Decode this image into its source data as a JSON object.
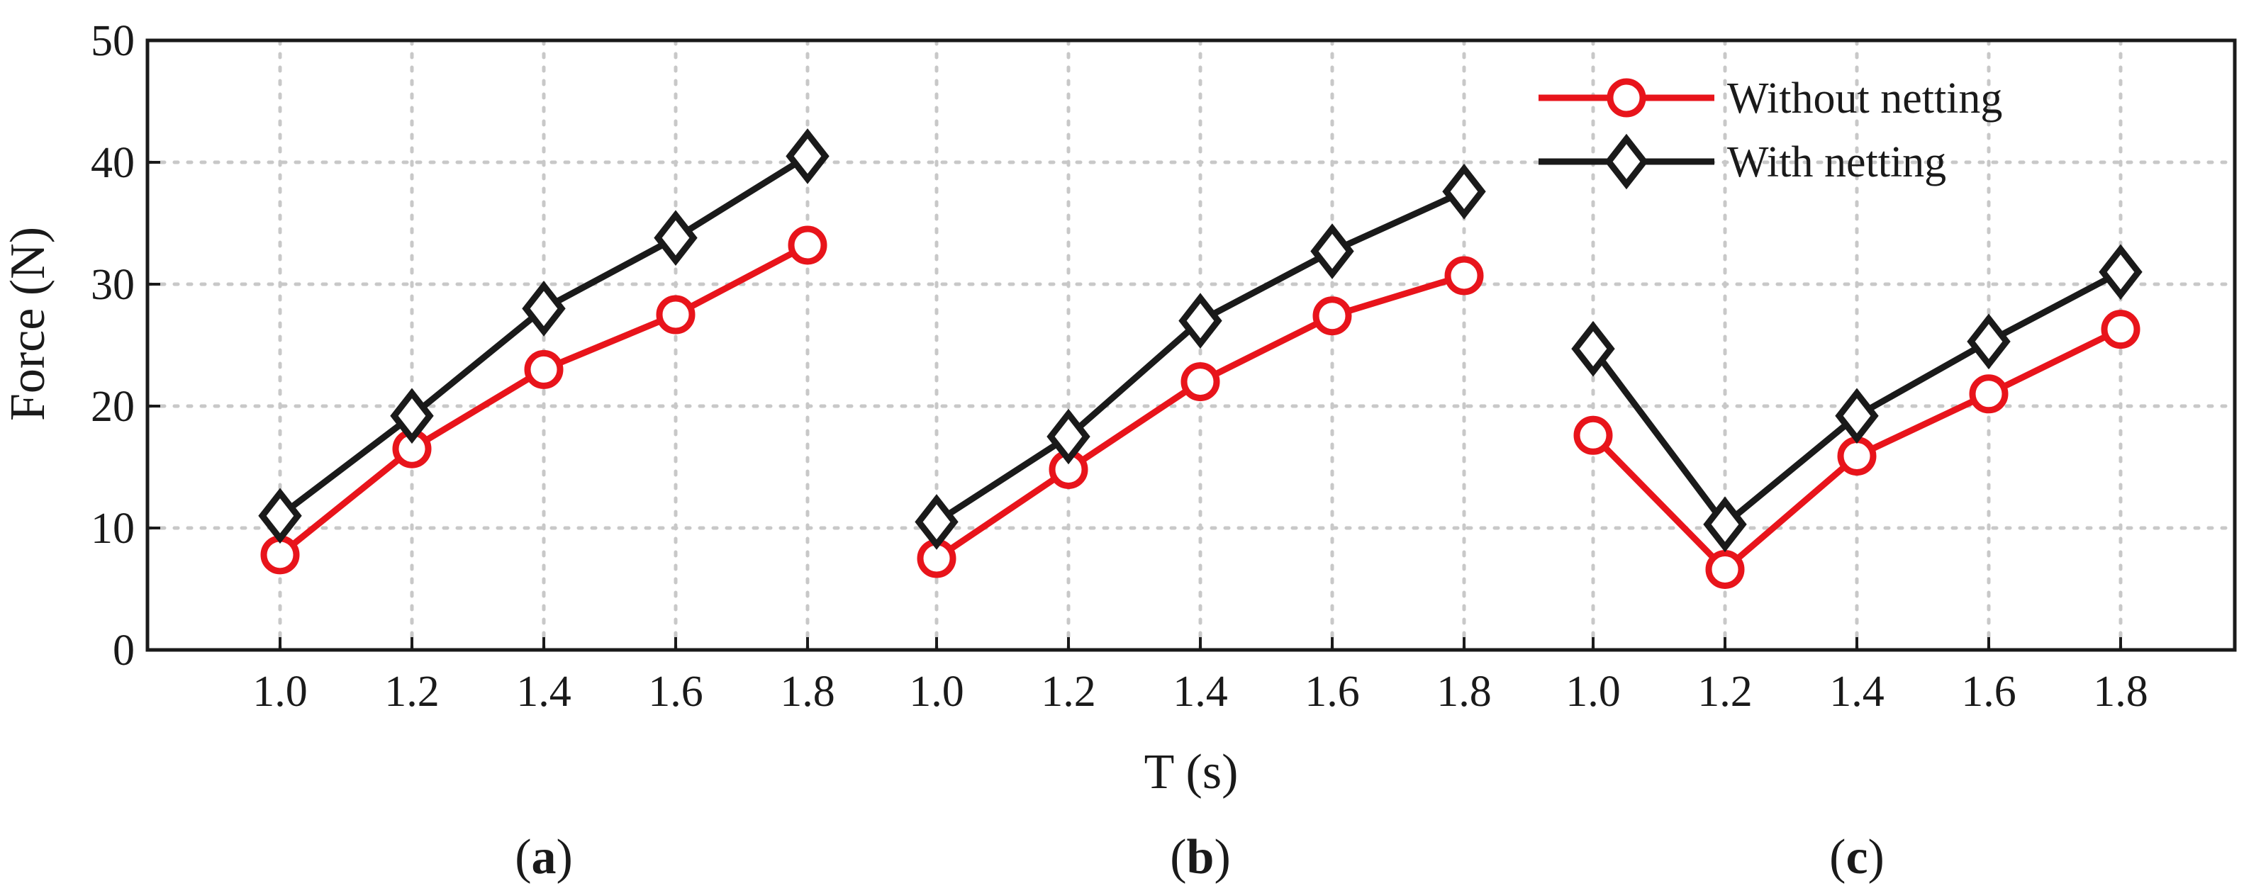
{
  "chart_data": {
    "type": "line",
    "xlabel": "T (s)",
    "ylabel": "Force (N)",
    "ylim": [
      0,
      50
    ],
    "yticks": [
      "0",
      "10",
      "20",
      "30",
      "40",
      "50"
    ],
    "grid": true,
    "legend_position": "top-right",
    "legend": [
      {
        "name": "Without netting",
        "color": "#e8141b",
        "marker": "circle"
      },
      {
        "name": "With netting",
        "color": "#1a1a1a",
        "marker": "diamond"
      }
    ],
    "groups": [
      {
        "label_open": "(",
        "label_letter": "a",
        "label_close": ")",
        "x": [
          "1.0",
          "1.2",
          "1.4",
          "1.6",
          "1.8"
        ],
        "series": [
          {
            "name": "Without netting",
            "values": [
              7.8,
              16.5,
              23.0,
              27.5,
              33.2
            ]
          },
          {
            "name": "With netting",
            "values": [
              11.0,
              19.2,
              28.0,
              33.8,
              40.5
            ]
          }
        ]
      },
      {
        "label_open": "(",
        "label_letter": "b",
        "label_close": ")",
        "x": [
          "1.0",
          "1.2",
          "1.4",
          "1.6",
          "1.8"
        ],
        "series": [
          {
            "name": "Without netting",
            "values": [
              7.5,
              14.8,
              22.0,
              27.4,
              30.7
            ]
          },
          {
            "name": "With netting",
            "values": [
              10.5,
              17.5,
              27.0,
              32.7,
              37.6
            ]
          }
        ]
      },
      {
        "label_open": "(",
        "label_letter": "c",
        "label_close": ")",
        "x": [
          "1.0",
          "1.2",
          "1.4",
          "1.6",
          "1.8"
        ],
        "series": [
          {
            "name": "Without netting",
            "values": [
              17.6,
              6.6,
              15.9,
              21.0,
              26.3
            ]
          },
          {
            "name": "With netting",
            "values": [
              24.7,
              10.3,
              19.2,
              25.3,
              31.0
            ]
          }
        ]
      }
    ]
  }
}
